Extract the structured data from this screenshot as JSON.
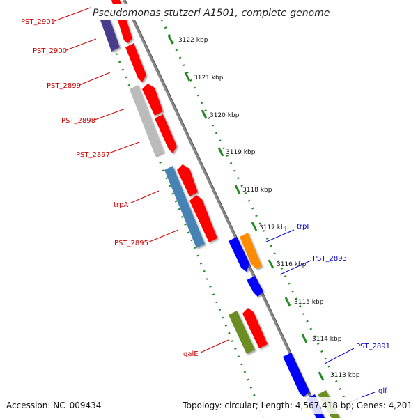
{
  "title": "Pseudomonas stutzeri A1501, complete genome",
  "footer": {
    "accession": "Accession: NC_009434",
    "summary": "Topology: circular; Length: 4,567,418 bp; Genes: 4,201"
  },
  "ticks": [
    {
      "label": "3122 kbp"
    },
    {
      "label": "3121 kbp"
    },
    {
      "label": "3120 kbp"
    },
    {
      "label": "3119 kbp"
    },
    {
      "label": "3118 kbp"
    },
    {
      "label": "3117 kbp"
    },
    {
      "label": "3116 kbp"
    },
    {
      "label": "3115 kbp"
    },
    {
      "label": "3114 kbp"
    },
    {
      "label": "3113 kbp"
    }
  ],
  "genes_left": [
    {
      "name": "PST_2901",
      "color": "#cc0000"
    },
    {
      "name": "PST_2900",
      "color": "#cc0000"
    },
    {
      "name": "PST_2899",
      "color": "#cc0000"
    },
    {
      "name": "PST_2898",
      "color": "#cc0000"
    },
    {
      "name": "PST_2897",
      "color": "#cc0000"
    },
    {
      "name": "trpA",
      "color": "#cc0000"
    },
    {
      "name": "PST_2895",
      "color": "#cc0000"
    },
    {
      "name": "galE",
      "color": "#cc0000"
    }
  ],
  "genes_right": [
    {
      "name": "trpI",
      "color": "#0000cc"
    },
    {
      "name": "PST_2893",
      "color": "#0000cc"
    },
    {
      "name": "PST_2891",
      "color": "#0000cc"
    },
    {
      "name": "glf",
      "color": "#0000cc"
    }
  ],
  "colors": {
    "backbone": "#888888",
    "gc_ring": "#228b22",
    "cds_forward": "#ff0000",
    "cds_reverse": "#0000ff",
    "trp_orange": "#ff8c00",
    "cog_purple": "#483d8b",
    "cog_grey": "#bbbbbb",
    "cog_steelblue": "#4682b4",
    "cog_olive": "#6b8e23"
  }
}
